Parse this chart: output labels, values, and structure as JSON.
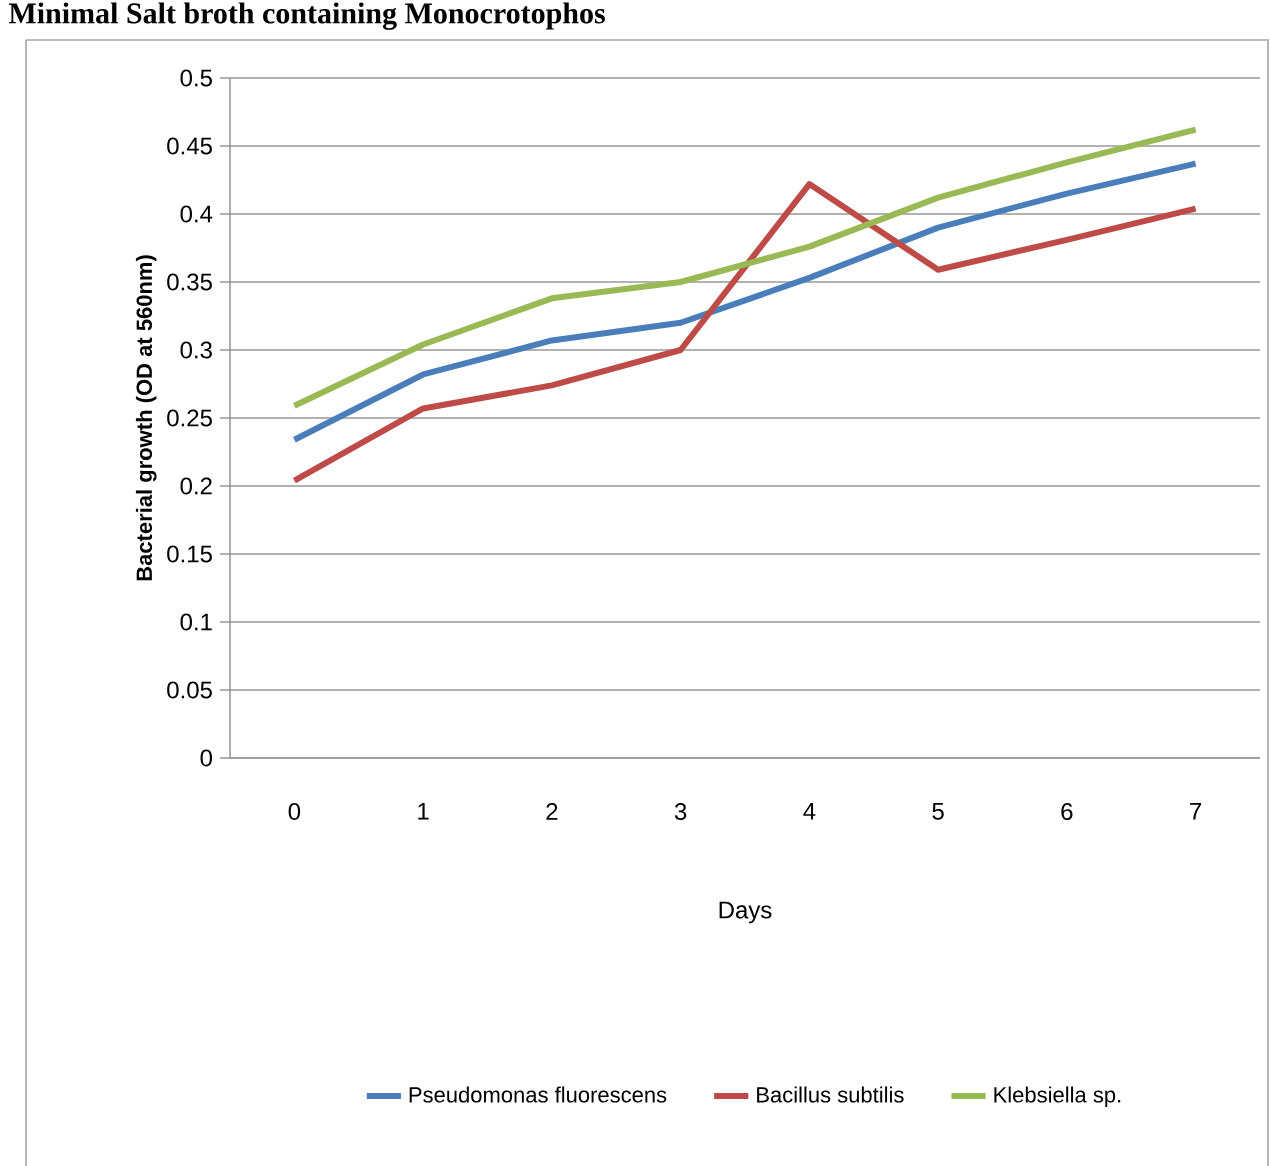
{
  "chart_data": {
    "type": "line",
    "title": "Minimal Salt broth containing Monocrotophos",
    "xlabel": "Days",
    "ylabel": "Bacterial growth (OD at 560nm)",
    "categories": [
      "0",
      "1",
      "2",
      "3",
      "4",
      "5",
      "6",
      "7"
    ],
    "series": [
      {
        "name": "Pseudomonas fluorescens",
        "color": "#4a7ebb",
        "values": [
          0.234,
          0.282,
          0.307,
          0.32,
          0.353,
          0.39,
          0.415,
          0.437
        ]
      },
      {
        "name": "Bacillus subtilis",
        "color": "#be4b48",
        "values": [
          0.204,
          0.257,
          0.274,
          0.3,
          0.422,
          0.359,
          0.381,
          0.404
        ]
      },
      {
        "name": "Klebsiella sp.",
        "color": "#98b954",
        "values": [
          0.259,
          0.304,
          0.338,
          0.35,
          0.376,
          0.412,
          0.438,
          0.462
        ]
      }
    ],
    "ylim": [
      0,
      0.5
    ],
    "yticks": [
      0,
      0.05,
      0.1,
      0.15,
      0.2,
      0.25,
      0.3,
      0.35,
      0.4,
      0.45,
      0.5
    ],
    "grid": "y",
    "legend": "bottom",
    "marker": "none",
    "line_style": "solid"
  }
}
